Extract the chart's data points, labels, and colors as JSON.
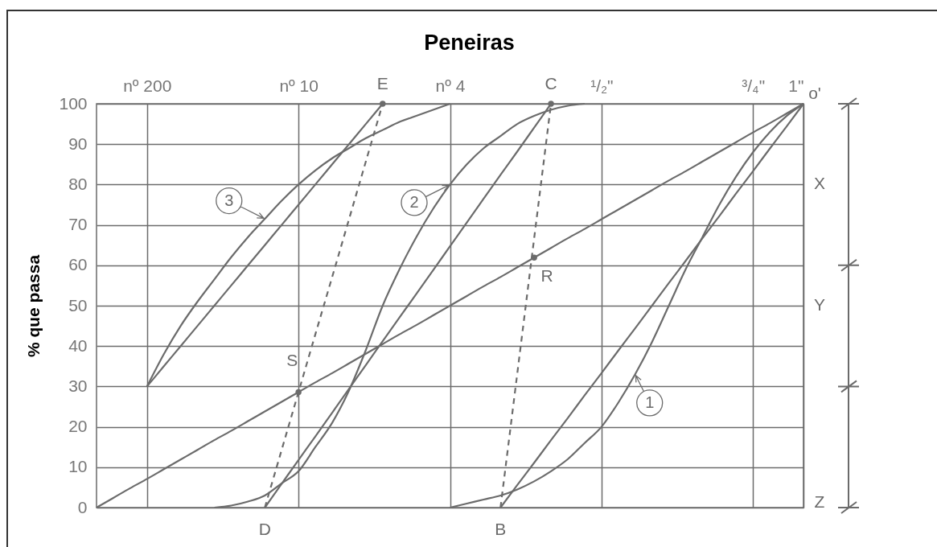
{
  "chart_data": {
    "type": "line",
    "title": "Peneiras",
    "ylabel": "% que passa",
    "categories": [
      null,
      null,
      null,
      "nº 200",
      null,
      null,
      null,
      null,
      null,
      null,
      null,
      null,
      "nº 10",
      null,
      null,
      null,
      null,
      null,
      null,
      null,
      null,
      "nº 4",
      null,
      null,
      null,
      null,
      null,
      null,
      null,
      null,
      "¹/₂\"",
      null,
      null,
      null,
      null,
      null,
      null,
      null,
      null,
      "³/₄\"",
      null,
      null,
      "1\""
    ],
    "ylim": [
      0,
      100
    ],
    "yticks": [
      0,
      10,
      20,
      30,
      40,
      50,
      60,
      70,
      80,
      90,
      100
    ],
    "grid": true,
    "series": [
      {
        "color": "#6b6b6b",
        "values": [
          0,
          2.4,
          4.8,
          7.1,
          9.5,
          11.9,
          14.3,
          16.7,
          19,
          21.4,
          23.8,
          26.2,
          28.6,
          31,
          33.3,
          35.7,
          38.1,
          40.5,
          42.9,
          45.2,
          47.6,
          50,
          52.4,
          54.8,
          57.1,
          59.5,
          61.9,
          64.3,
          66.7,
          69,
          71.4,
          73.8,
          76.2,
          78.6,
          81,
          83.3,
          85.7,
          88.1,
          90.5,
          92.9,
          95.2,
          97.6,
          100
        ],
        "value_labels": [
          null,
          null,
          null,
          null,
          null,
          null,
          null,
          null,
          null,
          null,
          null,
          null,
          null,
          null,
          null,
          null,
          null,
          null,
          null,
          null,
          null,
          null,
          null,
          null,
          null,
          null,
          null,
          null,
          null,
          null,
          null,
          null,
          null,
          null,
          null,
          null,
          null,
          null,
          null,
          null,
          null,
          null,
          "o'"
        ]
      },
      {
        "name": "1",
        "color": "#6b6b6b",
        "values": [
          null,
          null,
          null,
          null,
          null,
          null,
          null,
          null,
          null,
          null,
          null,
          null,
          null,
          null,
          null,
          null,
          null,
          null,
          null,
          null,
          null,
          0,
          1,
          2,
          3,
          4.5,
          6.5,
          9,
          12,
          16,
          20,
          26,
          33,
          41,
          50,
          59,
          67,
          75,
          82,
          88,
          93,
          97,
          100
        ]
      },
      {
        "color": "#6b6b6b",
        "values": [
          null,
          null,
          null,
          null,
          null,
          null,
          null,
          null,
          null,
          null,
          null,
          null,
          null,
          null,
          null,
          null,
          null,
          null,
          null,
          null,
          null,
          null,
          null,
          null,
          0,
          5.6,
          11.1,
          16.7,
          22.2,
          27.8,
          33.3,
          38.9,
          44.4,
          50,
          55.6,
          61.1,
          66.7,
          72.2,
          77.8,
          83.3,
          88.9,
          94.4,
          100
        ]
      },
      {
        "name": "2",
        "color": "#6b6b6b",
        "values": [
          null,
          null,
          null,
          null,
          null,
          null,
          null,
          0,
          0.5,
          1.5,
          3,
          6,
          9,
          15,
          21,
          29,
          39,
          50,
          59,
          67,
          74,
          80,
          85,
          89,
          92,
          95,
          97,
          98.5,
          99.5,
          100,
          null,
          null,
          null,
          null,
          null,
          null,
          null,
          null,
          null,
          null,
          null,
          null,
          null
        ]
      },
      {
        "color": "#6b6b6b",
        "values": [
          null,
          null,
          null,
          null,
          null,
          null,
          null,
          null,
          null,
          null,
          0,
          5.9,
          11.8,
          17.6,
          23.5,
          29.4,
          35.3,
          41.2,
          47.1,
          52.9,
          58.8,
          64.7,
          70.6,
          76.5,
          82.4,
          88.2,
          94.1,
          100,
          null,
          null,
          null,
          null,
          null,
          null,
          null,
          null,
          null,
          null,
          null,
          null,
          null,
          null,
          null
        ]
      },
      {
        "name": "3",
        "color": "#6b6b6b",
        "values": [
          null,
          null,
          null,
          30,
          38,
          45,
          51,
          56.5,
          62,
          67,
          71.5,
          76,
          80,
          83.5,
          86.5,
          89,
          91.5,
          93.5,
          95.5,
          97,
          98.5,
          100,
          null,
          null,
          null,
          null,
          null,
          null,
          null,
          null,
          null,
          null,
          null,
          null,
          null,
          null,
          null,
          null,
          null,
          null,
          null,
          null,
          null
        ]
      },
      {
        "color": "#6b6b6b",
        "values": [
          null,
          null,
          null,
          30,
          35,
          40,
          45,
          50,
          55,
          60,
          65,
          70,
          75,
          80,
          85,
          90,
          95,
          100,
          null,
          null,
          null,
          null,
          null,
          null,
          null,
          null,
          null,
          null,
          null,
          null,
          null,
          null,
          null,
          null,
          null,
          null,
          null,
          null,
          null,
          null,
          null,
          null,
          null
        ]
      },
      {
        "line_style": "dashed",
        "color": "#6b6b6b",
        "values": [
          null,
          null,
          null,
          null,
          null,
          null,
          null,
          null,
          null,
          null,
          null,
          null,
          null,
          null,
          null,
          null,
          null,
          null,
          null,
          null,
          null,
          null,
          null,
          null,
          0,
          33.3,
          66.7,
          100,
          null,
          null,
          null,
          null,
          null,
          null,
          null,
          null,
          null,
          null,
          null,
          null,
          null,
          null,
          null
        ],
        "value_labels": [
          null,
          null,
          null,
          null,
          null,
          null,
          null,
          null,
          null,
          null,
          null,
          null,
          null,
          null,
          null,
          null,
          null,
          null,
          null,
          null,
          null,
          null,
          null,
          null,
          "B",
          null,
          null,
          null,
          null,
          null,
          null,
          null,
          null,
          null,
          null,
          null,
          null,
          null,
          null,
          null,
          null,
          null,
          null
        ]
      },
      {
        "line_style": "dashed",
        "color": "#6b6b6b",
        "values": [
          null,
          null,
          null,
          null,
          null,
          null,
          null,
          null,
          null,
          null,
          0,
          14.3,
          28.6,
          42.9,
          57.1,
          71.4,
          85.7,
          100,
          null,
          null,
          null,
          null,
          null,
          null,
          null,
          null,
          null,
          null,
          null,
          null,
          null,
          null,
          null,
          null,
          null,
          null,
          null,
          null,
          null,
          null,
          null,
          null,
          null
        ],
        "value_labels": [
          null,
          null,
          null,
          null,
          null,
          null,
          null,
          null,
          null,
          null,
          "D",
          null,
          null,
          null,
          null,
          null,
          null,
          null,
          null,
          null,
          null,
          null,
          null,
          null,
          null,
          null,
          null,
          null,
          null,
          null,
          null,
          null,
          null,
          null,
          null,
          null,
          null,
          null,
          null,
          null,
          null,
          null,
          null
        ]
      },
      {
        "type": "scatter",
        "marker": "circle",
        "color": "#6b6b6b",
        "values": [
          null,
          null,
          null,
          null,
          null,
          null,
          null,
          null,
          null,
          null,
          null,
          null,
          28.6,
          null,
          null,
          null,
          null,
          100,
          null,
          null,
          null,
          null,
          null,
          null,
          null,
          null,
          61.9,
          100,
          null,
          null,
          null,
          null,
          null,
          null,
          null,
          null,
          null,
          null,
          null,
          null,
          null,
          null,
          null
        ],
        "value_labels": [
          null,
          null,
          null,
          null,
          null,
          null,
          null,
          null,
          null,
          null,
          null,
          null,
          "S",
          null,
          null,
          null,
          null,
          "E",
          null,
          null,
          null,
          null,
          null,
          null,
          null,
          null,
          "R",
          "C",
          null,
          null,
          null,
          null,
          null,
          null,
          null,
          null,
          null,
          null,
          null,
          null,
          null,
          null,
          null
        ]
      }
    ],
    "annotations": [
      "X",
      "Y",
      "Z"
    ]
  }
}
